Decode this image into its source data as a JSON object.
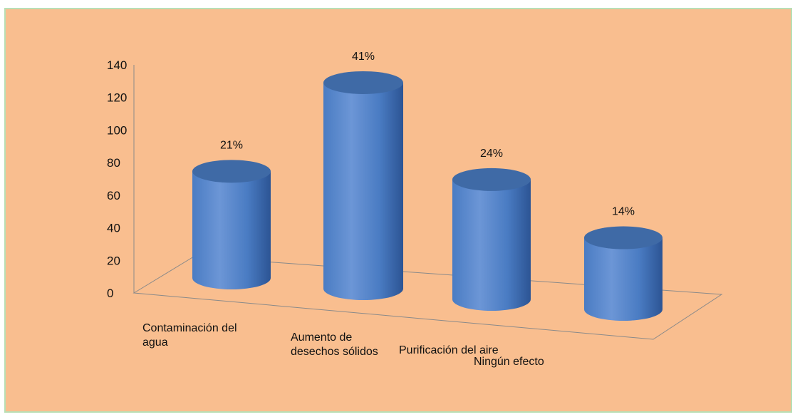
{
  "colors": {
    "background": "#f9be8f",
    "border": "#b9dfb5",
    "bar_top": "#3f6aa6",
    "bar_light": "#6c96d6",
    "bar_mid": "#4a7cc3",
    "bar_dark": "#2c5494",
    "axis": "#8a8a8a"
  },
  "chart_data": {
    "type": "bar",
    "style": "3d-cylinder",
    "title": "",
    "xlabel": "",
    "ylabel": "",
    "ylim": [
      0,
      140
    ],
    "yticks": [
      "0",
      "20",
      "40",
      "60",
      "80",
      "100",
      "120",
      "140"
    ],
    "grid": false,
    "legend": "none",
    "categories": [
      [
        "Contaminación del",
        "agua"
      ],
      [
        "Aumento de",
        "desechos sólidos"
      ],
      [
        "Purificación del aire"
      ],
      [
        "Ningún efecto"
      ]
    ],
    "values": [
      73,
      141,
      82,
      49
    ],
    "data_labels": [
      "21%",
      "41%",
      "24%",
      "14%"
    ]
  }
}
